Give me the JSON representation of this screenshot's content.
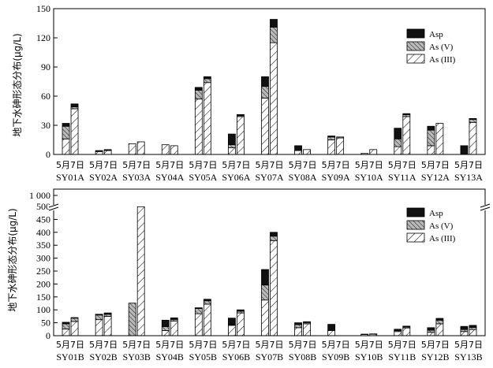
{
  "colors": {
    "asp": "#111111",
    "asv_bg": "#b9b9b9",
    "asiii_bg": "#ffffff",
    "frame": "#000000"
  },
  "chart_data": [
    {
      "type": "bar",
      "stacked": true,
      "ylabel": "地下水砷形态分布(μg/L)",
      "ylim": [
        0,
        150
      ],
      "yticks": [
        0,
        30,
        60,
        90,
        120,
        150
      ],
      "grid": false,
      "legend_position": "top-right",
      "series_order": [
        "As (III)",
        "As (V)",
        "Asp"
      ],
      "legend": [
        "Asp",
        "As (V)",
        "As (III)"
      ],
      "groups": [
        {
          "top": "5月7日",
          "bottom": "SY01A"
        },
        {
          "top": "5月7日",
          "bottom": "SY02A"
        },
        {
          "top": "5月7日",
          "bottom": "SY03A"
        },
        {
          "top": "5月7日",
          "bottom": "SY04A"
        },
        {
          "top": "5月7日",
          "bottom": "SY05A"
        },
        {
          "top": "5月7日",
          "bottom": "SY06A"
        },
        {
          "top": "5月7日",
          "bottom": "SY07A"
        },
        {
          "top": "5月7日",
          "bottom": "SY08A"
        },
        {
          "top": "5月7日",
          "bottom": "SY09A"
        },
        {
          "top": "5月7日",
          "bottom": "SY10A"
        },
        {
          "top": "5月7日",
          "bottom": "SY11A"
        },
        {
          "top": "5月7日",
          "bottom": "SY12A"
        },
        {
          "top": "5月7日",
          "bottom": "SY13A"
        }
      ],
      "bars": [
        [
          {
            "asiii": 16,
            "asv": 13,
            "asp": 3
          },
          {
            "asiii": 47,
            "asv": 2,
            "asp": 3
          }
        ],
        [
          {
            "asiii": 3,
            "asv": 0,
            "asp": 1
          },
          {
            "asiii": 4,
            "asv": 0,
            "asp": 1
          }
        ],
        [
          {
            "asiii": 11,
            "asv": 0,
            "asp": 0
          },
          {
            "asiii": 13,
            "asv": 0,
            "asp": 0
          }
        ],
        [
          {
            "asiii": 10,
            "asv": 0,
            "asp": 0
          },
          {
            "asiii": 9,
            "asv": 0,
            "asp": 0
          }
        ],
        [
          {
            "asiii": 57,
            "asv": 9,
            "asp": 3
          },
          {
            "asiii": 74,
            "asv": 4,
            "asp": 2
          }
        ],
        [
          {
            "asiii": 7,
            "asv": 3,
            "asp": 11
          },
          {
            "asiii": 39,
            "asv": 1,
            "asp": 1
          }
        ],
        [
          {
            "asiii": 58,
            "asv": 12,
            "asp": 10
          },
          {
            "asiii": 115,
            "asv": 16,
            "asp": 8
          }
        ],
        [
          {
            "asiii": 4,
            "asv": 0,
            "asp": 5
          },
          {
            "asiii": 5,
            "asv": 0,
            "asp": 0
          }
        ],
        [
          {
            "asiii": 15,
            "asv": 3,
            "asp": 1
          },
          {
            "asiii": 17,
            "asv": 1,
            "asp": 0
          }
        ],
        [
          {
            "asiii": 1,
            "asv": 0,
            "asp": 0
          },
          {
            "asiii": 5,
            "asv": 0,
            "asp": 0
          }
        ],
        [
          {
            "asiii": 8,
            "asv": 8,
            "asp": 11
          },
          {
            "asiii": 39,
            "asv": 2,
            "asp": 1
          }
        ],
        [
          {
            "asiii": 9,
            "asv": 16,
            "asp": 4
          },
          {
            "asiii": 32,
            "asv": 0,
            "asp": 0
          }
        ],
        [
          {
            "asiii": 0,
            "asv": 0,
            "asp": 9
          },
          {
            "asiii": 33,
            "asv": 3,
            "asp": 1
          }
        ]
      ]
    },
    {
      "type": "bar",
      "stacked": true,
      "ylabel": "地下水砷形态分布(μg/L)",
      "ylim": [
        0,
        500
      ],
      "yticks": [
        0,
        50,
        100,
        150,
        200,
        250,
        300,
        350,
        400,
        450,
        500
      ],
      "axis_break": {
        "after": 500,
        "label": "1 000"
      },
      "grid": false,
      "legend_position": "top-right",
      "series_order": [
        "As (III)",
        "As (V)",
        "Asp"
      ],
      "legend": [
        "Asp",
        "As (V)",
        "As (III)"
      ],
      "groups": [
        {
          "top": "5月7日",
          "bottom": "SY01B"
        },
        {
          "top": "5月7日",
          "bottom": "SY02B"
        },
        {
          "top": "5月7日",
          "bottom": "SY03B"
        },
        {
          "top": "5月7日",
          "bottom": "SY04B"
        },
        {
          "top": "5月7日",
          "bottom": "SY05B"
        },
        {
          "top": "5月7日",
          "bottom": "SY06B"
        },
        {
          "top": "5月7日",
          "bottom": "SY07B"
        },
        {
          "top": "5月7日",
          "bottom": "SY08B"
        },
        {
          "top": "5月7日",
          "bottom": "SY09B"
        },
        {
          "top": "5月7日",
          "bottom": "SY10B"
        },
        {
          "top": "5月7日",
          "bottom": "SY11B"
        },
        {
          "top": "5月7日",
          "bottom": "SY12B"
        },
        {
          "top": "5月7日",
          "bottom": "SY13B"
        }
      ],
      "bars": [
        [
          {
            "asiii": 26,
            "asv": 20,
            "asp": 6
          },
          {
            "asiii": 55,
            "asv": 13,
            "asp": 2
          }
        ],
        [
          {
            "asiii": 62,
            "asv": 18,
            "asp": 3
          },
          {
            "asiii": 75,
            "asv": 8,
            "asp": 5
          }
        ],
        [
          {
            "asiii": 0,
            "asv": 126,
            "asp": 0
          },
          {
            "asiii": 1000,
            "asv": 0,
            "asp": 0,
            "display_top": 499
          }
        ],
        [
          {
            "asiii": 20,
            "asv": 15,
            "asp": 25
          },
          {
            "asiii": 57,
            "asv": 6,
            "asp": 6
          }
        ],
        [
          {
            "asiii": 85,
            "asv": 20,
            "asp": 3
          },
          {
            "asiii": 122,
            "asv": 13,
            "asp": 6
          }
        ],
        [
          {
            "asiii": 40,
            "asv": 3,
            "asp": 25
          },
          {
            "asiii": 88,
            "asv": 7,
            "asp": 5
          }
        ],
        [
          {
            "asiii": 138,
            "asv": 58,
            "asp": 60
          },
          {
            "asiii": 368,
            "asv": 17,
            "asp": 15
          }
        ],
        [
          {
            "asiii": 31,
            "asv": 12,
            "asp": 7
          },
          {
            "asiii": 46,
            "asv": 5,
            "asp": 3
          }
        ],
        [
          {
            "asiii": 20,
            "asv": 0,
            "asp": 24
          },
          {
            "asiii": 0,
            "asv": 0,
            "asp": 0
          }
        ],
        [
          {
            "asiii": 5,
            "asv": 0,
            "asp": 1
          },
          {
            "asiii": 6,
            "asv": 1,
            "asp": 0
          }
        ],
        [
          {
            "asiii": 16,
            "asv": 4,
            "asp": 5
          },
          {
            "asiii": 30,
            "asv": 4,
            "asp": 3
          }
        ],
        [
          {
            "asiii": 13,
            "asv": 8,
            "asp": 10
          },
          {
            "asiii": 46,
            "asv": 14,
            "asp": 7
          }
        ],
        [
          {
            "asiii": 16,
            "asv": 8,
            "asp": 12
          },
          {
            "asiii": 24,
            "asv": 8,
            "asp": 8
          }
        ]
      ]
    }
  ]
}
